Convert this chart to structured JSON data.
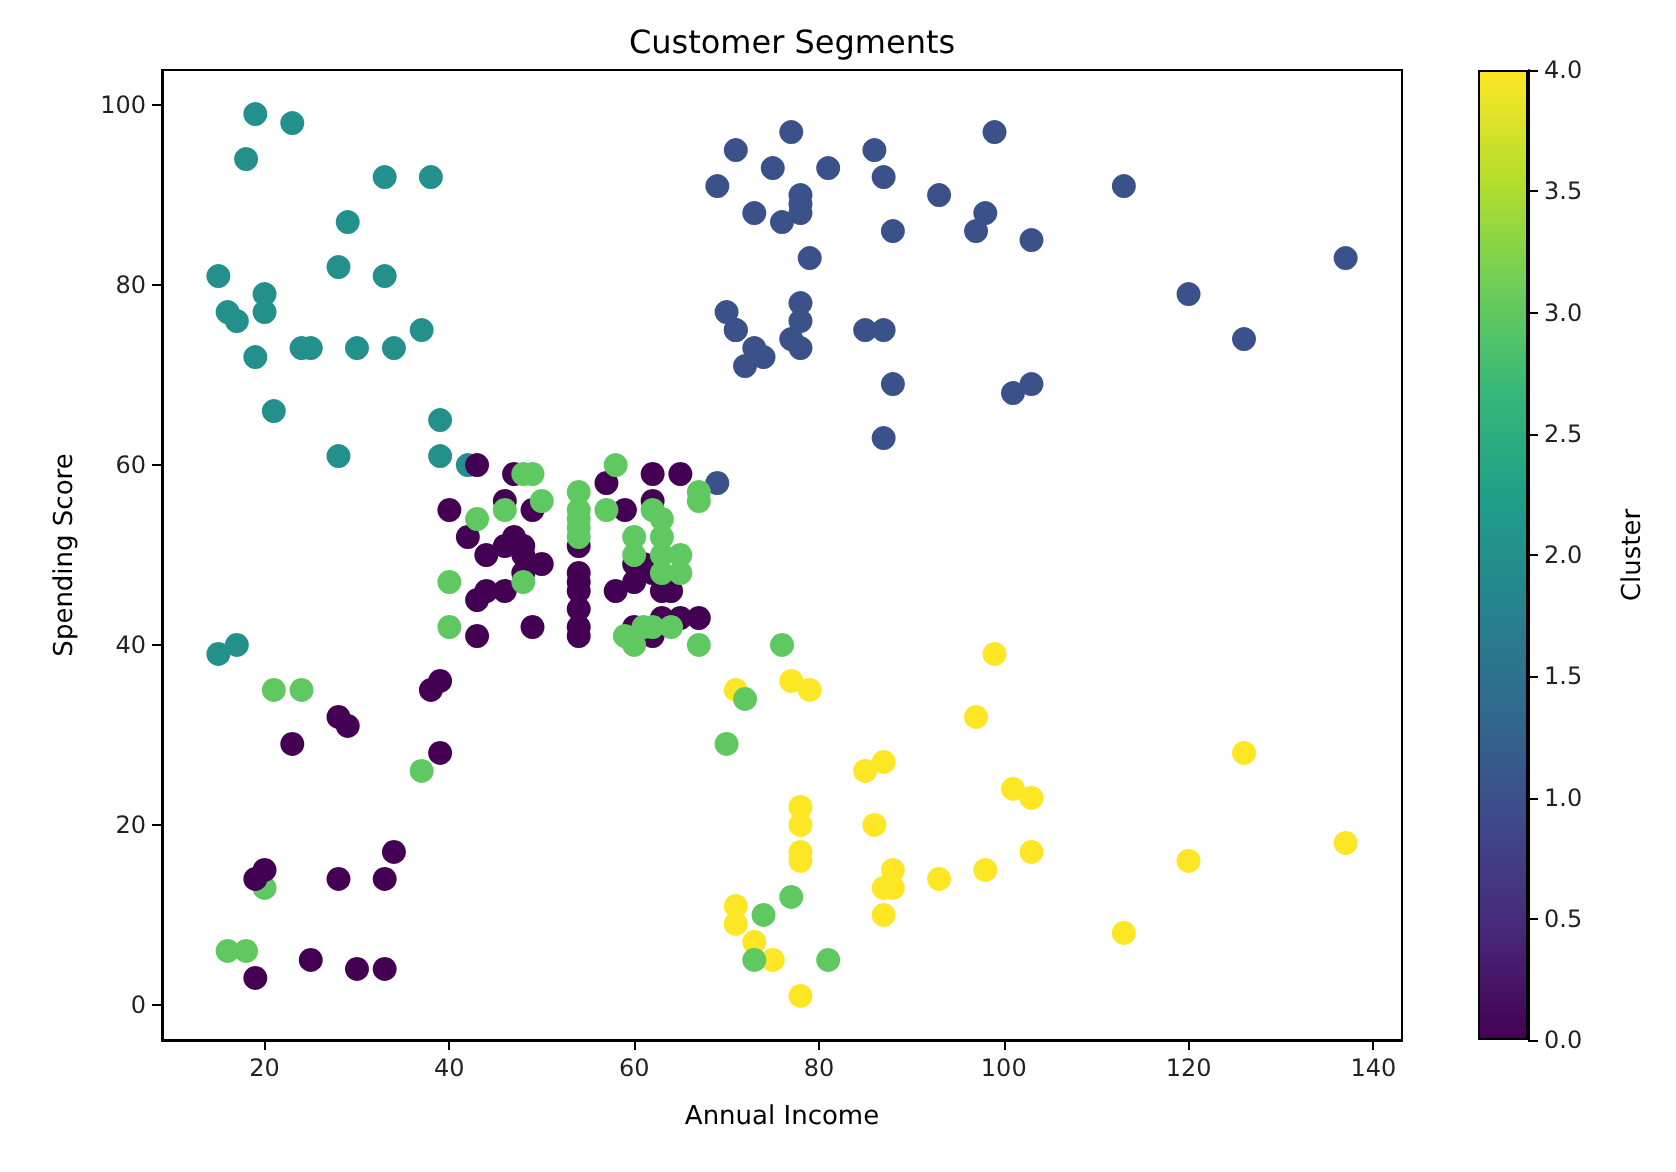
{
  "chart_data": {
    "type": "scatter",
    "title": "Customer Segments",
    "xlabel": "Annual Income",
    "ylabel": "Spending Score",
    "clabel": "Cluster",
    "xlim": [
      8.9,
      143.1
    ],
    "xticks": [
      20,
      40,
      60,
      80,
      100,
      120,
      140
    ],
    "ylim": [
      -3.9,
      103.9
    ],
    "yticks": [
      0,
      20,
      40,
      60,
      80,
      100
    ],
    "clim": [
      0,
      4
    ],
    "cticks": [
      {
        "value": 0,
        "label": "0.0"
      },
      {
        "value": 0.5,
        "label": "0.5"
      },
      {
        "value": 1,
        "label": "1.0"
      },
      {
        "value": 1.5,
        "label": "1.5"
      },
      {
        "value": 2,
        "label": "2.0"
      },
      {
        "value": 2.5,
        "label": "2.5"
      },
      {
        "value": 3,
        "label": "3.0"
      },
      {
        "value": 3.5,
        "label": "3.5"
      },
      {
        "value": 4,
        "label": "4.0"
      }
    ],
    "marker": "circle",
    "x": [
      15,
      16,
      17,
      18,
      19,
      19,
      20,
      20,
      21,
      23,
      24,
      25,
      28,
      28,
      29,
      30,
      33,
      33,
      34,
      37,
      38,
      39,
      39,
      42,
      15,
      17,
      69,
      69,
      70,
      71,
      71,
      71,
      72,
      73,
      73,
      74,
      75,
      76,
      77,
      77,
      78,
      78,
      78,
      78,
      78,
      78,
      79,
      81,
      85,
      86,
      87,
      87,
      87,
      88,
      88,
      93,
      97,
      98,
      99,
      101,
      103,
      103,
      113,
      120,
      126,
      137,
      71,
      77,
      79,
      99,
      97,
      126,
      85,
      87,
      101,
      103,
      78,
      78,
      86,
      78,
      78,
      103,
      120,
      137,
      88,
      87,
      88,
      93,
      98,
      87,
      71,
      71,
      73,
      75,
      78,
      113,
      76,
      72,
      70,
      77,
      74,
      73,
      81,
      21,
      24,
      37,
      20,
      16,
      18,
      28,
      29,
      23,
      38,
      39,
      39,
      20,
      19,
      28,
      33,
      34,
      19,
      25,
      30,
      33,
      40,
      42,
      43,
      43,
      43,
      44,
      44,
      46,
      46,
      46,
      47,
      48,
      47,
      48,
      48,
      49,
      49,
      50,
      54,
      54,
      54,
      54,
      54,
      54,
      54,
      57,
      58,
      59,
      60,
      60,
      60,
      61,
      62,
      62,
      62,
      62,
      63,
      63,
      64,
      65,
      65,
      67,
      40,
      40,
      43,
      46,
      49,
      48,
      48,
      50,
      54,
      54,
      54,
      54,
      54,
      57,
      58,
      59,
      60,
      60,
      60,
      61,
      62,
      62,
      63,
      63,
      63,
      63,
      64,
      65,
      65,
      67,
      67,
      67
    ],
    "values": [
      81,
      77,
      76,
      94,
      72,
      99,
      77,
      79,
      66,
      98,
      73,
      73,
      82,
      61,
      87,
      73,
      92,
      81,
      73,
      75,
      92,
      61,
      65,
      60,
      39,
      40,
      91,
      58,
      77,
      95,
      75,
      75,
      71,
      88,
      73,
      72,
      93,
      87,
      97,
      74,
      90,
      88,
      76,
      89,
      78,
      73,
      83,
      93,
      75,
      95,
      63,
      75,
      92,
      86,
      69,
      90,
      86,
      88,
      97,
      68,
      85,
      69,
      91,
      79,
      74,
      83,
      35,
      36,
      35,
      39,
      32,
      28,
      26,
      27,
      24,
      23,
      22,
      20,
      20,
      17,
      16,
      17,
      16,
      18,
      15,
      13,
      13,
      14,
      15,
      10,
      11,
      9,
      7,
      5,
      1,
      8,
      40,
      34,
      29,
      12,
      10,
      5,
      5,
      35,
      35,
      26,
      13,
      6,
      6,
      32,
      31,
      29,
      35,
      36,
      28,
      15,
      14,
      14,
      14,
      17,
      3,
      5,
      4,
      4,
      55,
      52,
      60,
      45,
      41,
      50,
      46,
      51,
      46,
      56,
      52,
      51,
      59,
      50,
      48,
      55,
      42,
      49,
      47,
      48,
      42,
      51,
      41,
      44,
      46,
      58,
      46,
      55,
      49,
      42,
      47,
      49,
      41,
      48,
      59,
      56,
      46,
      43,
      46,
      43,
      59,
      43,
      47,
      42,
      54,
      55,
      59,
      59,
      47,
      56,
      54,
      53,
      52,
      55,
      57,
      55,
      60,
      41,
      40,
      52,
      50,
      42,
      55,
      42,
      50,
      48,
      52,
      54,
      42,
      48,
      50,
      57,
      56,
      40
    ],
    "cvalues": [
      2,
      2,
      2,
      2,
      2,
      2,
      2,
      2,
      2,
      2,
      2,
      2,
      2,
      2,
      2,
      2,
      2,
      2,
      2,
      2,
      2,
      2,
      2,
      2,
      2,
      2,
      1,
      1,
      1,
      1,
      1,
      1,
      1,
      1,
      1,
      1,
      1,
      1,
      1,
      1,
      1,
      1,
      1,
      1,
      1,
      1,
      1,
      1,
      1,
      1,
      1,
      1,
      1,
      1,
      1,
      1,
      1,
      1,
      1,
      1,
      1,
      1,
      1,
      1,
      1,
      1,
      4,
      4,
      4,
      4,
      4,
      4,
      4,
      4,
      4,
      4,
      4,
      4,
      4,
      4,
      4,
      4,
      4,
      4,
      4,
      4,
      4,
      4,
      4,
      4,
      4,
      4,
      4,
      4,
      4,
      4,
      3,
      3,
      3,
      3,
      3,
      3,
      3,
      3,
      3,
      3,
      3,
      3,
      3,
      0,
      0,
      0,
      0,
      0,
      0,
      0,
      0,
      0,
      0,
      0,
      0,
      0,
      0,
      0,
      0,
      0,
      0,
      0,
      0,
      0,
      0,
      0,
      0,
      0,
      0,
      0,
      0,
      0,
      0,
      0,
      0,
      0,
      0,
      0,
      0,
      0,
      0,
      0,
      0,
      0,
      0,
      0,
      0,
      0,
      0,
      0,
      0,
      0,
      0,
      0,
      0,
      0,
      0,
      0,
      0,
      0,
      3,
      3,
      3,
      3,
      3,
      3,
      3,
      3,
      3,
      3,
      3,
      3,
      3,
      3,
      3,
      3,
      3,
      3,
      3,
      3,
      3,
      3,
      3,
      3,
      3,
      3,
      3,
      3,
      3,
      3,
      3,
      3
    ]
  }
}
